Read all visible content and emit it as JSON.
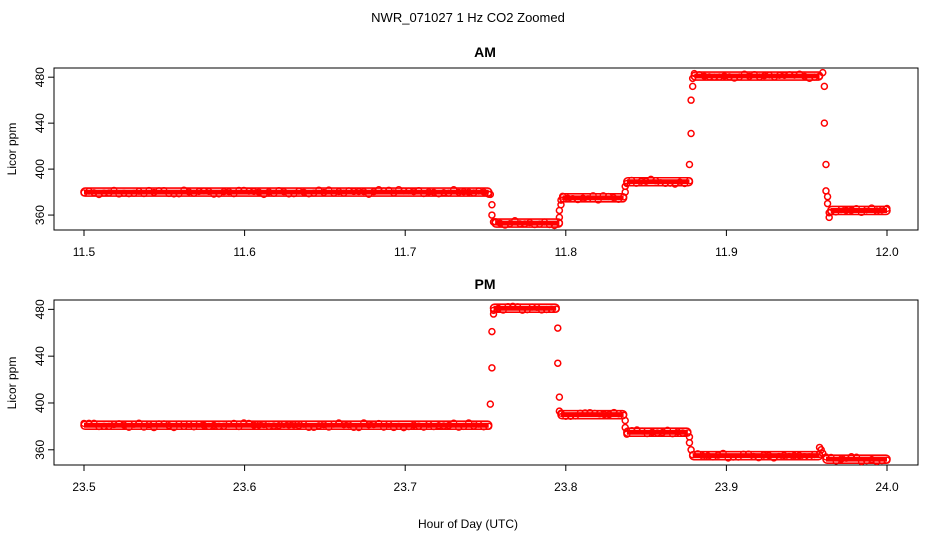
{
  "figure": {
    "title": "NWR_071027  1 Hz CO2 Zoomed",
    "xlabel": "Hour of Day (UTC)",
    "marker_color": "#ff0000"
  },
  "chart_data": [
    {
      "type": "scatter",
      "title": "AM",
      "ylabel": "Licor ppm",
      "xlim": [
        11.5,
        12.0
      ],
      "ylim": [
        347,
        488
      ],
      "xticks": [
        "11.5",
        "11.6",
        "11.7",
        "11.8",
        "11.9",
        "12.0"
      ],
      "yticks": [
        "360",
        "400",
        "440",
        "480"
      ],
      "segments": [
        {
          "x": [
            11.5,
            11.752
          ],
          "y": 380
        },
        {
          "x": [
            11.756,
            11.796
          ],
          "y": 353
        },
        {
          "x": [
            11.798,
            11.836
          ],
          "y": 375
        },
        {
          "x": [
            11.838,
            11.877
          ],
          "y": 389
        },
        {
          "x": [
            11.88,
            11.958
          ],
          "y": 481
        },
        {
          "x": [
            11.965,
            12.0
          ],
          "y": 364
        }
      ],
      "transitions": [
        {
          "x": 11.753,
          "y": 378
        },
        {
          "x": 11.754,
          "y": 369
        },
        {
          "x": 11.754,
          "y": 360
        },
        {
          "x": 11.755,
          "y": 354
        },
        {
          "x": 11.796,
          "y": 358
        },
        {
          "x": 11.796,
          "y": 364
        },
        {
          "x": 11.797,
          "y": 369
        },
        {
          "x": 11.797,
          "y": 373
        },
        {
          "x": 11.837,
          "y": 380
        },
        {
          "x": 11.837,
          "y": 385
        },
        {
          "x": 11.877,
          "y": 404
        },
        {
          "x": 11.878,
          "y": 431
        },
        {
          "x": 11.878,
          "y": 460
        },
        {
          "x": 11.879,
          "y": 472
        },
        {
          "x": 11.879,
          "y": 479
        },
        {
          "x": 11.96,
          "y": 484
        },
        {
          "x": 11.961,
          "y": 472
        },
        {
          "x": 11.961,
          "y": 440
        },
        {
          "x": 11.962,
          "y": 404
        },
        {
          "x": 11.962,
          "y": 381
        },
        {
          "x": 11.963,
          "y": 376
        },
        {
          "x": 11.963,
          "y": 370
        },
        {
          "x": 11.964,
          "y": 362
        },
        {
          "x": 11.964,
          "y": 358
        }
      ]
    },
    {
      "type": "scatter",
      "title": "PM",
      "ylabel": "Licor ppm",
      "xlim": [
        23.5,
        24.0
      ],
      "ylim": [
        347,
        488
      ],
      "xticks": [
        "23.5",
        "23.6",
        "23.7",
        "23.8",
        "23.9",
        "24.0"
      ],
      "yticks": [
        "360",
        "400",
        "440",
        "480"
      ],
      "segments": [
        {
          "x": [
            23.5,
            23.752
          ],
          "y": 381
        },
        {
          "x": [
            23.755,
            23.794
          ],
          "y": 481
        },
        {
          "x": [
            23.797,
            23.836
          ],
          "y": 390
        },
        {
          "x": [
            23.838,
            23.876
          ],
          "y": 375
        },
        {
          "x": [
            23.879,
            23.958
          ],
          "y": 355
        },
        {
          "x": [
            23.962,
            24.0
          ],
          "y": 352
        }
      ],
      "transitions": [
        {
          "x": 23.753,
          "y": 399
        },
        {
          "x": 23.754,
          "y": 430
        },
        {
          "x": 23.754,
          "y": 461
        },
        {
          "x": 23.755,
          "y": 476
        },
        {
          "x": 23.795,
          "y": 464
        },
        {
          "x": 23.795,
          "y": 434
        },
        {
          "x": 23.796,
          "y": 405
        },
        {
          "x": 23.796,
          "y": 393
        },
        {
          "x": 23.837,
          "y": 385
        },
        {
          "x": 23.837,
          "y": 379
        },
        {
          "x": 23.877,
          "y": 371
        },
        {
          "x": 23.877,
          "y": 366
        },
        {
          "x": 23.878,
          "y": 360
        },
        {
          "x": 23.958,
          "y": 362
        },
        {
          "x": 23.959,
          "y": 360
        },
        {
          "x": 23.96,
          "y": 357
        }
      ]
    }
  ]
}
